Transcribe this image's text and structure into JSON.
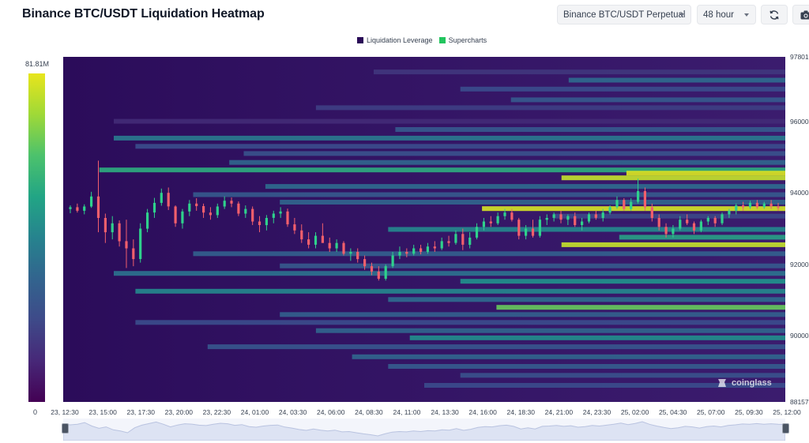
{
  "header": {
    "title": "Binance BTC/USDT Liquidation Heatmap",
    "symbol_select": "Binance BTC/USDT Perpetual",
    "range_select": "48 hour",
    "refresh_icon": "refresh-icon",
    "camera_icon": "camera-icon"
  },
  "legend": {
    "items": [
      {
        "label": "Liquidation Leverage",
        "color": "#2a0b57"
      },
      {
        "label": "Supercharts",
        "color": "#22c55e"
      }
    ]
  },
  "colorbar": {
    "max_label": "81.81M",
    "min_label": "0",
    "palette": "viridis"
  },
  "watermark": "coinglass",
  "chart_data": {
    "type": "heatmap",
    "title": "",
    "y_ticks": [
      "97801",
      "96000",
      "94000",
      "92000",
      "90000",
      "88157"
    ],
    "ylim": [
      88157,
      97801
    ],
    "x_ticks": [
      "23, 12:30",
      "23, 15:00",
      "23, 17:30",
      "23, 20:00",
      "23, 22:30",
      "24, 01:00",
      "24, 03:30",
      "24, 06:00",
      "24, 08:30",
      "24, 11:00",
      "24, 13:30",
      "24, 16:00",
      "24, 18:30",
      "24, 21:00",
      "24, 23:30",
      "25, 02:00",
      "25, 04:30",
      "25, 07:00",
      "25, 09:30",
      "25, 12:00"
    ],
    "color_scale": {
      "min": 0,
      "max": 81810000,
      "max_label": "81.81M"
    },
    "liquidation_bands": [
      {
        "price": 97380,
        "start": 0.43,
        "intensity": 0.22
      },
      {
        "price": 97150,
        "start": 0.7,
        "intensity": 0.42
      },
      {
        "price": 96900,
        "start": 0.55,
        "intensity": 0.3
      },
      {
        "price": 96600,
        "start": 0.62,
        "intensity": 0.35
      },
      {
        "price": 96380,
        "start": 0.35,
        "intensity": 0.25
      },
      {
        "price": 96000,
        "start": 0.07,
        "intensity": 0.18
      },
      {
        "price": 95770,
        "start": 0.46,
        "intensity": 0.35
      },
      {
        "price": 95530,
        "start": 0.07,
        "intensity": 0.48
      },
      {
        "price": 95300,
        "start": 0.1,
        "intensity": 0.3
      },
      {
        "price": 95100,
        "start": 0.25,
        "intensity": 0.32
      },
      {
        "price": 94850,
        "start": 0.23,
        "intensity": 0.4
      },
      {
        "price": 94640,
        "start": 0.05,
        "intensity": 0.7
      },
      {
        "price": 94550,
        "start": 0.78,
        "intensity": 0.98
      },
      {
        "price": 94420,
        "start": 0.69,
        "intensity": 0.95
      },
      {
        "price": 94180,
        "start": 0.28,
        "intensity": 0.42
      },
      {
        "price": 93950,
        "start": 0.18,
        "intensity": 0.35
      },
      {
        "price": 93740,
        "start": 0.3,
        "intensity": 0.4
      },
      {
        "price": 93560,
        "start": 0.58,
        "intensity": 0.97
      },
      {
        "price": 93350,
        "start": 0.68,
        "intensity": 0.28
      },
      {
        "price": 92980,
        "start": 0.45,
        "intensity": 0.55
      },
      {
        "price": 92760,
        "start": 0.77,
        "intensity": 0.65
      },
      {
        "price": 92550,
        "start": 0.69,
        "intensity": 0.95
      },
      {
        "price": 92300,
        "start": 0.18,
        "intensity": 0.38
      },
      {
        "price": 91960,
        "start": 0.3,
        "intensity": 0.35
      },
      {
        "price": 91750,
        "start": 0.07,
        "intensity": 0.45
      },
      {
        "price": 91530,
        "start": 0.55,
        "intensity": 0.6
      },
      {
        "price": 91250,
        "start": 0.1,
        "intensity": 0.55
      },
      {
        "price": 91020,
        "start": 0.45,
        "intensity": 0.42
      },
      {
        "price": 90800,
        "start": 0.6,
        "intensity": 0.82
      },
      {
        "price": 90600,
        "start": 0.3,
        "intensity": 0.38
      },
      {
        "price": 90380,
        "start": 0.1,
        "intensity": 0.3
      },
      {
        "price": 90150,
        "start": 0.35,
        "intensity": 0.4
      },
      {
        "price": 89950,
        "start": 0.48,
        "intensity": 0.58
      },
      {
        "price": 89700,
        "start": 0.2,
        "intensity": 0.34
      },
      {
        "price": 89420,
        "start": 0.4,
        "intensity": 0.4
      },
      {
        "price": 89150,
        "start": 0.45,
        "intensity": 0.36
      },
      {
        "price": 88900,
        "start": 0.55,
        "intensity": 0.32
      },
      {
        "price": 88620,
        "start": 0.5,
        "intensity": 0.3
      }
    ],
    "price_candles": [
      [
        93550,
        93650,
        93430,
        93600
      ],
      [
        93600,
        93700,
        93450,
        93500
      ],
      [
        93500,
        93680,
        93400,
        93620
      ],
      [
        93620,
        94030,
        93580,
        93900
      ],
      [
        93900,
        94900,
        92900,
        93300
      ],
      [
        93300,
        93420,
        92600,
        92900
      ],
      [
        92900,
        93350,
        92700,
        93150
      ],
      [
        93150,
        93230,
        92500,
        92650
      ],
      [
        92650,
        93250,
        91900,
        92450
      ],
      [
        92450,
        92700,
        91950,
        92150
      ],
      [
        92150,
        93150,
        92050,
        93000
      ],
      [
        93000,
        93550,
        92900,
        93450
      ],
      [
        93450,
        93860,
        93300,
        93720
      ],
      [
        93720,
        94120,
        93640,
        94000
      ],
      [
        94000,
        94150,
        93520,
        93620
      ],
      [
        93620,
        93650,
        93050,
        93150
      ],
      [
        93150,
        93550,
        93000,
        93480
      ],
      [
        93480,
        93800,
        93350,
        93700
      ],
      [
        93700,
        93850,
        93500,
        93630
      ],
      [
        93630,
        93700,
        93300,
        93450
      ],
      [
        93450,
        93600,
        93250,
        93380
      ],
      [
        93380,
        93700,
        93300,
        93620
      ],
      [
        93620,
        93900,
        93550,
        93780
      ],
      [
        93780,
        93870,
        93600,
        93700
      ],
      [
        93700,
        93760,
        93350,
        93420
      ],
      [
        93420,
        93650,
        93300,
        93550
      ],
      [
        93550,
        93620,
        93100,
        93200
      ],
      [
        93200,
        93350,
        92900,
        93100
      ],
      [
        93100,
        93380,
        92950,
        93300
      ],
      [
        93300,
        93500,
        93150,
        93420
      ],
      [
        93420,
        93600,
        93300,
        93480
      ],
      [
        93480,
        93560,
        93050,
        93120
      ],
      [
        93120,
        93300,
        92850,
        92950
      ],
      [
        92950,
        93120,
        92600,
        92700
      ],
      [
        92700,
        92900,
        92450,
        92550
      ],
      [
        92550,
        92900,
        92450,
        92800
      ],
      [
        92800,
        93150,
        92700,
        92600
      ],
      [
        92600,
        92750,
        92350,
        92450
      ],
      [
        92450,
        92700,
        92350,
        92600
      ],
      [
        92600,
        92650,
        92250,
        92300
      ],
      [
        92300,
        92450,
        92100,
        92350
      ],
      [
        92350,
        92450,
        92050,
        92150
      ],
      [
        92150,
        92250,
        91850,
        91950
      ],
      [
        91950,
        92050,
        91700,
        91800
      ],
      [
        91800,
        91950,
        91550,
        91600
      ],
      [
        91600,
        92000,
        91550,
        91950
      ],
      [
        91950,
        92350,
        91900,
        92250
      ],
      [
        92250,
        92500,
        92150,
        92350
      ],
      [
        92350,
        92450,
        92200,
        92300
      ],
      [
        92300,
        92550,
        92250,
        92450
      ],
      [
        92450,
        92550,
        92280,
        92350
      ],
      [
        92350,
        92600,
        92300,
        92500
      ],
      [
        92500,
        92650,
        92350,
        92450
      ],
      [
        92450,
        92750,
        92400,
        92650
      ],
      [
        92650,
        92800,
        92500,
        92600
      ],
      [
        92600,
        92950,
        92550,
        92850
      ],
      [
        92850,
        93000,
        92400,
        92550
      ],
      [
        92550,
        92900,
        92450,
        92750
      ],
      [
        92750,
        93150,
        92700,
        93050
      ],
      [
        93050,
        93300,
        92950,
        93200
      ],
      [
        93200,
        93350,
        93050,
        93150
      ],
      [
        93150,
        93450,
        93100,
        93350
      ],
      [
        93350,
        93550,
        93250,
        93450
      ],
      [
        93450,
        93550,
        93200,
        93250
      ],
      [
        93250,
        93300,
        92700,
        92800
      ],
      [
        92800,
        93100,
        92700,
        93000
      ],
      [
        93000,
        93250,
        92750,
        92800
      ],
      [
        92800,
        93350,
        92750,
        93250
      ],
      [
        93250,
        93400,
        93100,
        93300
      ],
      [
        93300,
        93450,
        93200,
        93400
      ],
      [
        93400,
        93500,
        93150,
        93250
      ],
      [
        93250,
        93400,
        93100,
        93350
      ],
      [
        93350,
        93450,
        93050,
        93100
      ],
      [
        93100,
        93300,
        92950,
        93200
      ],
      [
        93200,
        93450,
        93150,
        93400
      ],
      [
        93400,
        93500,
        93250,
        93300
      ],
      [
        93300,
        93550,
        93200,
        93450
      ],
      [
        93450,
        93650,
        93400,
        93600
      ],
      [
        93600,
        93900,
        93550,
        93800
      ],
      [
        93800,
        93850,
        93500,
        93550
      ],
      [
        93550,
        93850,
        93500,
        93750
      ],
      [
        93750,
        94400,
        93700,
        94050
      ],
      [
        94050,
        94150,
        93500,
        93600
      ],
      [
        93600,
        93700,
        93200,
        93300
      ],
      [
        93300,
        93400,
        92950,
        93050
      ],
      [
        93050,
        93150,
        92750,
        92850
      ],
      [
        92850,
        93100,
        92750,
        93000
      ],
      [
        93000,
        93350,
        92950,
        93250
      ],
      [
        93250,
        93400,
        93100,
        93150
      ],
      [
        93150,
        93200,
        92850,
        92950
      ],
      [
        92950,
        93250,
        92900,
        93200
      ],
      [
        93200,
        93350,
        93100,
        93300
      ],
      [
        93300,
        93350,
        93050,
        93150
      ],
      [
        93150,
        93450,
        93100,
        93400
      ],
      [
        93400,
        93550,
        93300,
        93500
      ],
      [
        93500,
        93700,
        93400,
        93650
      ],
      [
        93650,
        93750,
        93500,
        93600
      ],
      [
        93600,
        93780,
        93550,
        93720
      ],
      [
        93720,
        93800,
        93550,
        93600
      ],
      [
        93600,
        93750,
        93550,
        93700
      ],
      [
        93700,
        93800,
        93550,
        93620
      ],
      [
        93620,
        93720,
        93500,
        93580
      ]
    ]
  }
}
